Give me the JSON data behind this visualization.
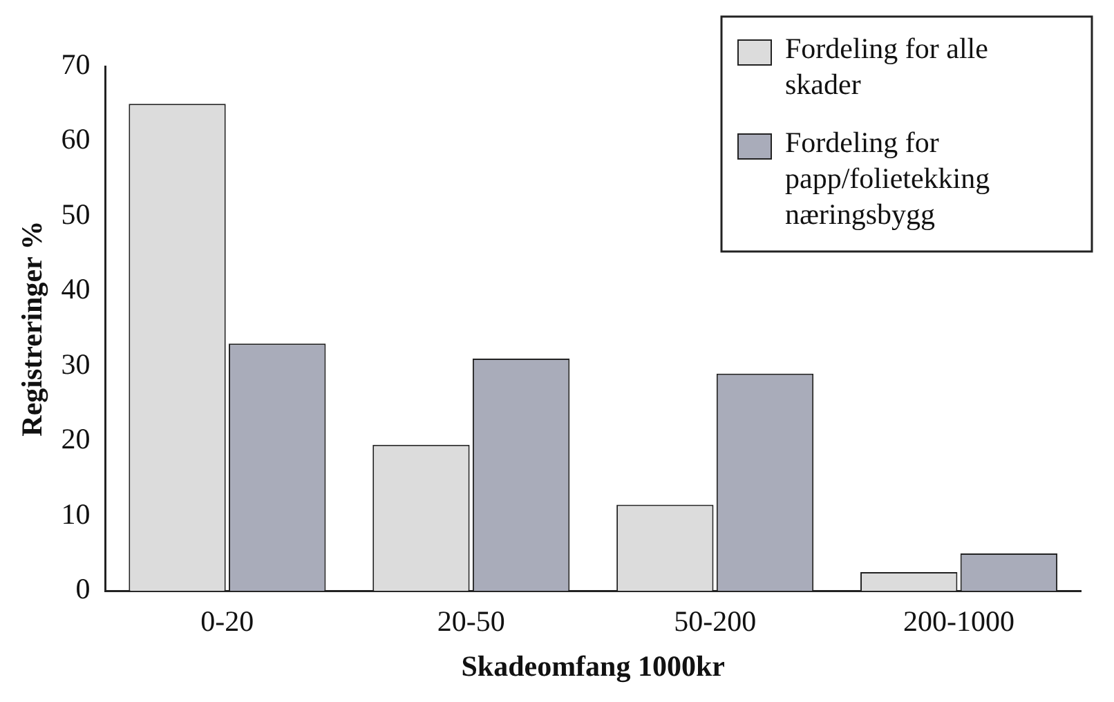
{
  "chart_data": {
    "type": "bar",
    "xlabel": "Skadeomfang 1000kr",
    "ylabel": "Registreringer %",
    "categories": [
      "0-20",
      "20-50",
      "50-200",
      "200-1000"
    ],
    "series": [
      {
        "name": "Fordeling for alle skader",
        "color": "#dcdcdc",
        "values": [
          65,
          19.5,
          11.5,
          2.5
        ]
      },
      {
        "name": "Fordeling for papp/folietekking næringsbygg",
        "color": "#a9acba",
        "values": [
          33,
          31,
          29,
          5
        ]
      }
    ],
    "ylim": [
      0,
      70
    ],
    "yticks": [
      0,
      10,
      20,
      30,
      40,
      50,
      60,
      70
    ],
    "grid": false,
    "legend": "top right"
  }
}
